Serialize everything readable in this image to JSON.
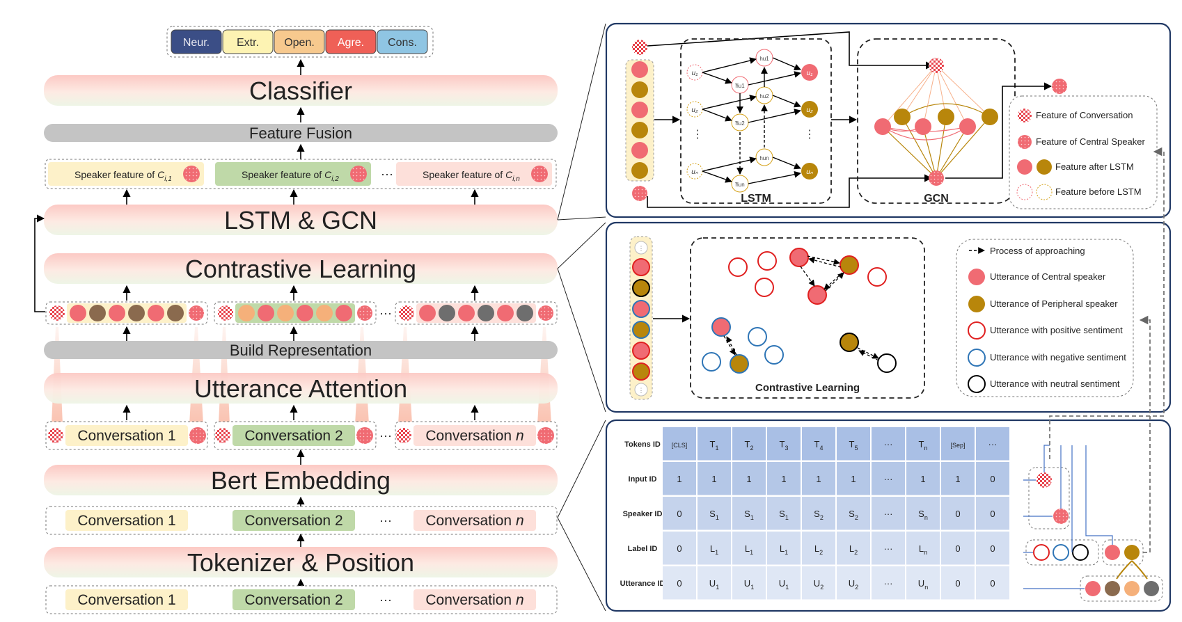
{
  "traits": [
    {
      "label": "Neur.",
      "color": "#3b4e86",
      "text_color": "#e8e8f0"
    },
    {
      "label": "Extr.",
      "color": "#fdf3b3",
      "text_color": "#333333"
    },
    {
      "label": "Open.",
      "color": "#f7c98e",
      "text_color": "#333333"
    },
    {
      "label": "Agre.",
      "color": "#ef6057",
      "text_color": "#ffffff"
    },
    {
      "label": "Cons.",
      "color": "#8fc5e3",
      "text_color": "#333333"
    }
  ],
  "layers": {
    "classifier": "Classifier",
    "feature_fusion": "Feature Fusion",
    "lstm_gcn": "LSTM & GCN",
    "contrastive": "Contrastive Learning",
    "build_rep": "Build Representation",
    "utt_attention": "Utterance Attention",
    "bert": "Bert Embedding",
    "tokenizer": "Tokenizer & Position"
  },
  "speaker_features": [
    {
      "prefix": "Speaker feature of ",
      "sub": "i,1"
    },
    {
      "prefix": "Speaker feature of ",
      "sub": "i,2"
    },
    {
      "prefix": "Speaker feature of ",
      "sub": "i,n"
    }
  ],
  "conversations": [
    "Conversation 1",
    "Conversation 2",
    "Conversation "
  ],
  "conversation_n_symbol": "n",
  "ellipsis": "···",
  "lstm_panel": {
    "lstm_label": "LSTM",
    "gcn_label": "GCN",
    "legend": [
      "Feature of Conversation",
      "Feature of Central Speaker",
      "Feature after LSTM",
      "Feature before LSTM"
    ]
  },
  "contrastive_panel": {
    "label": "Contrastive Learning",
    "legend": [
      "Process of approaching",
      "Utterance of Central speaker",
      "Utterance of Peripheral speaker",
      "Utterance with positive sentiment",
      "Utterance with negative sentiment",
      "Utterance with neutral sentiment"
    ]
  },
  "table": {
    "row_labels": [
      "Tokens ID",
      "Input ID",
      "Speaker ID",
      "Label ID",
      "Utterance ID"
    ],
    "rows": [
      [
        "[CLS]",
        "T1",
        "T2",
        "T3",
        "T4",
        "T5",
        "···",
        "Tn",
        "[Sep]",
        "···"
      ],
      [
        "1",
        "1",
        "1",
        "1",
        "1",
        "1",
        "···",
        "1",
        "1",
        "0"
      ],
      [
        "0",
        "S1",
        "S1",
        "S1",
        "S2",
        "S2",
        "···",
        "Sn",
        "0",
        "0"
      ],
      [
        "0",
        "L1",
        "L1",
        "L1",
        "L2",
        "L2",
        "···",
        "Ln",
        "0",
        "0"
      ],
      [
        "0",
        "U1",
        "U1",
        "U1",
        "U2",
        "U2",
        "···",
        "Un",
        "0",
        "0"
      ]
    ]
  },
  "colors": {
    "central": "#f06b73",
    "peripheral": "#b8860b",
    "brown": "#8a6a4e",
    "gray": "#6e6e6e",
    "orange": "#f5b07a",
    "band_pink": "#fbd3d0",
    "band_green": "#f3f7ee",
    "gray_bar": "#c4c4c4",
    "yellow_box": "#fdf1c9",
    "green_box": "#bfd9a8",
    "pink_box": "#fde0da",
    "panel_border": "#203864",
    "table_cell": "#b4c7e7",
    "positive": "#e02020",
    "negative": "#2e75b6",
    "neutral": "#000000"
  }
}
